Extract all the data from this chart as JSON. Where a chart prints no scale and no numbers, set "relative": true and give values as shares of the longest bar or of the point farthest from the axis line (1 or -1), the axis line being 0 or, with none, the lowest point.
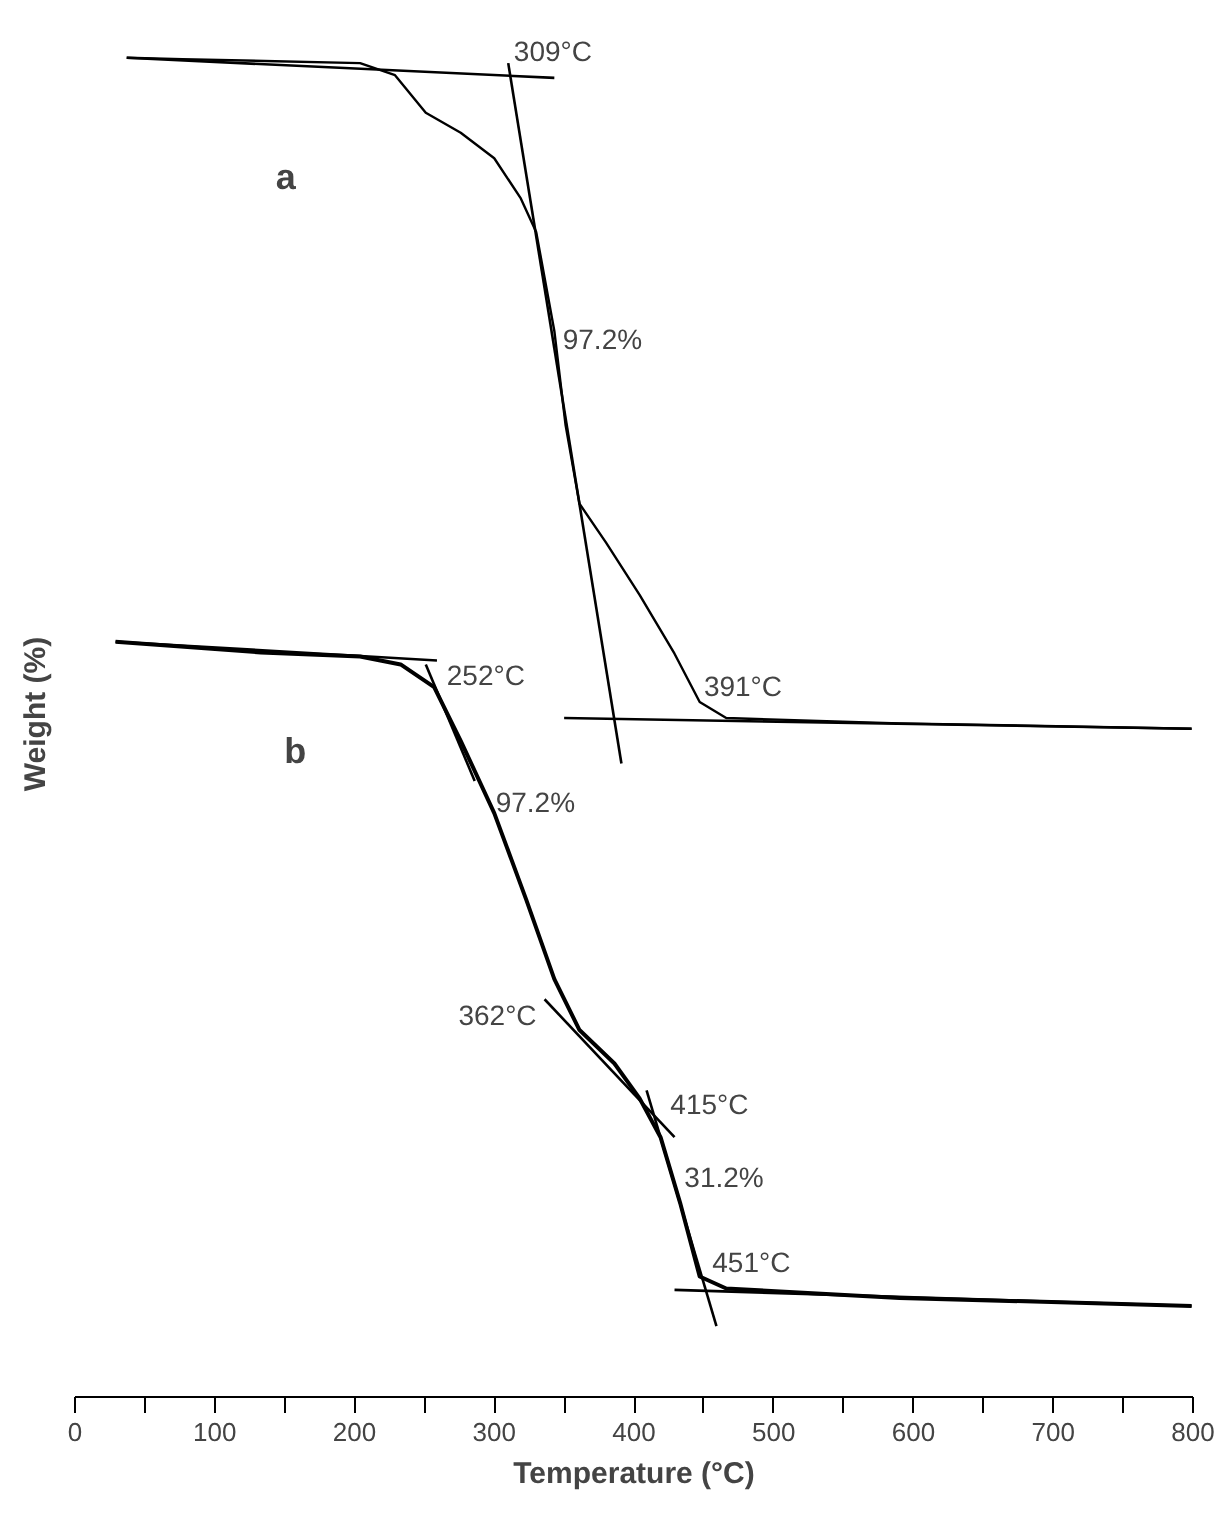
{
  "chart_data": {
    "type": "line",
    "relative": true,
    "xlabel": "Temperature (°C)",
    "ylabel": "Weight (%)",
    "xlim": [
      0,
      800
    ],
    "xticks": [
      0,
      {
        "value": 50,
        "label": null
      },
      100,
      {
        "value": 150,
        "label": null
      },
      200,
      {
        "value": 250,
        "label": null
      },
      300,
      {
        "value": 350,
        "label": null
      },
      400,
      {
        "value": 450,
        "label": null
      },
      500,
      {
        "value": 550,
        "label": null
      },
      600,
      {
        "value": 650,
        "label": null
      },
      700,
      {
        "value": 750,
        "label": null
      },
      800
    ],
    "grid": false,
    "marker": "none",
    "line_style": "solid",
    "series": [
      {
        "name": "a",
        "color": "#000000",
        "x": [
          37,
          77,
          204,
          229,
          251,
          276,
          300,
          319,
          330,
          343,
          351,
          361,
          380,
          404,
          429,
          447,
          466,
          590,
          799
        ],
        "values": [
          1.0,
          0.999,
          0.996,
          0.987,
          0.959,
          0.944,
          0.925,
          0.895,
          0.87,
          0.796,
          0.726,
          0.667,
          0.638,
          0.599,
          0.555,
          0.519,
          0.507,
          0.503,
          0.499
        ]
      },
      {
        "name": "b",
        "color": "#000000",
        "x": [
          29,
          133,
          204,
          233,
          257,
          276,
          300,
          323,
          343,
          361,
          386,
          404,
          419,
          433,
          447,
          466,
          590,
          799
        ],
        "values": [
          0.564,
          0.556,
          0.553,
          0.547,
          0.53,
          0.49,
          0.436,
          0.371,
          0.312,
          0.274,
          0.249,
          0.223,
          0.194,
          0.145,
          0.09,
          0.081,
          0.074,
          0.068
        ]
      },
      {
        "color": "#000000",
        "x": [
          37,
          343
        ],
        "values": [
          1.0,
          0.985
        ]
      },
      {
        "color": "#000000",
        "x": [
          310,
          391
        ],
        "values": [
          0.996,
          0.473
        ]
      },
      {
        "color": "#000000",
        "x": [
          350,
          799
        ],
        "values": [
          0.507,
          0.499
        ]
      },
      {
        "color": "#000000",
        "x": [
          29,
          259
        ],
        "values": [
          0.564,
          0.55
        ]
      },
      {
        "color": "#000000",
        "x": [
          251,
          286
        ],
        "values": [
          0.547,
          0.46
        ]
      },
      {
        "color": "#000000",
        "x": [
          336,
          429
        ],
        "values": [
          0.297,
          0.194
        ]
      },
      {
        "color": "#000000",
        "x": [
          409,
          459
        ],
        "values": [
          0.229,
          0.053
        ]
      },
      {
        "color": "#000000",
        "x": [
          429,
          799
        ],
        "values": [
          0.08,
          0.068
        ]
      }
    ],
    "annotations": [
      {
        "text": "309°C",
        "x": 314,
        "y": 0.993
      },
      {
        "text": "97.2%",
        "x": 349,
        "y": 0.778
      },
      {
        "text": "391°C",
        "x": 450,
        "y": 0.519
      },
      {
        "text": "252°C",
        "x": 266,
        "y": 0.527
      },
      {
        "text": "97.2%",
        "x": 301,
        "y": 0.432
      },
      {
        "text": "362°C",
        "x": 336,
        "y": 0.297
      },
      {
        "text": "415°C",
        "x": 426,
        "y": 0.207
      },
      {
        "text": "31.2%",
        "x": 436,
        "y": 0.152
      },
      {
        "text": "451°C",
        "x": 456,
        "y": 0.089
      }
    ]
  }
}
